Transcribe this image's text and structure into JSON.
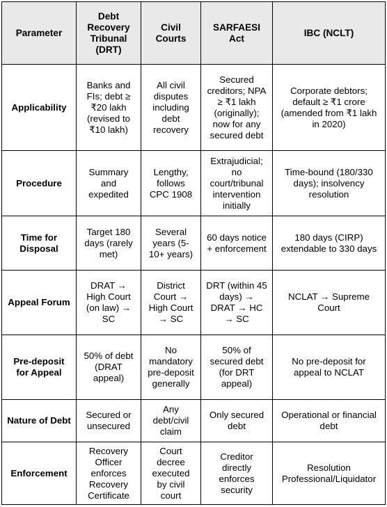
{
  "table": {
    "headers": [
      "Parameter",
      "Debt Recovery Tribunal (DRT)",
      "Civil Courts",
      "SARFAESI Act",
      "IBC (NCLT)"
    ],
    "rows": [
      {
        "parameter": "Applicability",
        "drt": "Banks and FIs; debt ≥ ₹20 lakh (revised to ₹10 lakh)",
        "civil": "All civil disputes including debt recovery",
        "sarfaesi": "Secured creditors; NPA ≥ ₹1 lakh (originally); now for any secured debt",
        "ibc": "Corporate debtors; default ≥ ₹1 crore (amended from ₹1 lakh in 2020)"
      },
      {
        "parameter": "Procedure",
        "drt": "Summary and expedited",
        "civil": "Lengthy, follows CPC 1908",
        "sarfaesi": "Extrajudicial; no court/tribunal intervention initially",
        "ibc": "Time-bound (180/330 days); insolvency resolution"
      },
      {
        "parameter": "Time for Disposal",
        "drt": "Target 180 days (rarely met)",
        "civil": "Several years (5-10+ years)",
        "sarfaesi": "60 days notice + enforcement",
        "ibc": "180 days (CIRP) extendable to 330 days"
      },
      {
        "parameter": "Appeal Forum",
        "drt": "DRAT → High Court (on law) → SC",
        "civil": "District Court → High Court → SC",
        "sarfaesi": "DRT (within 45 days) → DRAT → HC → SC",
        "ibc": "NCLAT → Supreme Court"
      },
      {
        "parameter": "Pre-deposit for Appeal",
        "drt": "50% of debt (DRAT appeal)",
        "civil": "No mandatory pre-deposit generally",
        "sarfaesi": "50% of secured debt (for DRT appeal)",
        "ibc": "No pre-deposit for appeal to NCLAT"
      },
      {
        "parameter": "Nature of Debt",
        "drt": "Secured or unsecured",
        "civil": "Any debt/civil claim",
        "sarfaesi": "Only secured debt",
        "ibc": "Operational or financial debt"
      },
      {
        "parameter": "Enforcement",
        "drt": "Recovery Officer enforces Recovery Certificate",
        "civil": "Court decree executed by civil court",
        "sarfaesi": "Creditor directly enforces security",
        "ibc": "Resolution Professional/Liquidator"
      }
    ]
  }
}
